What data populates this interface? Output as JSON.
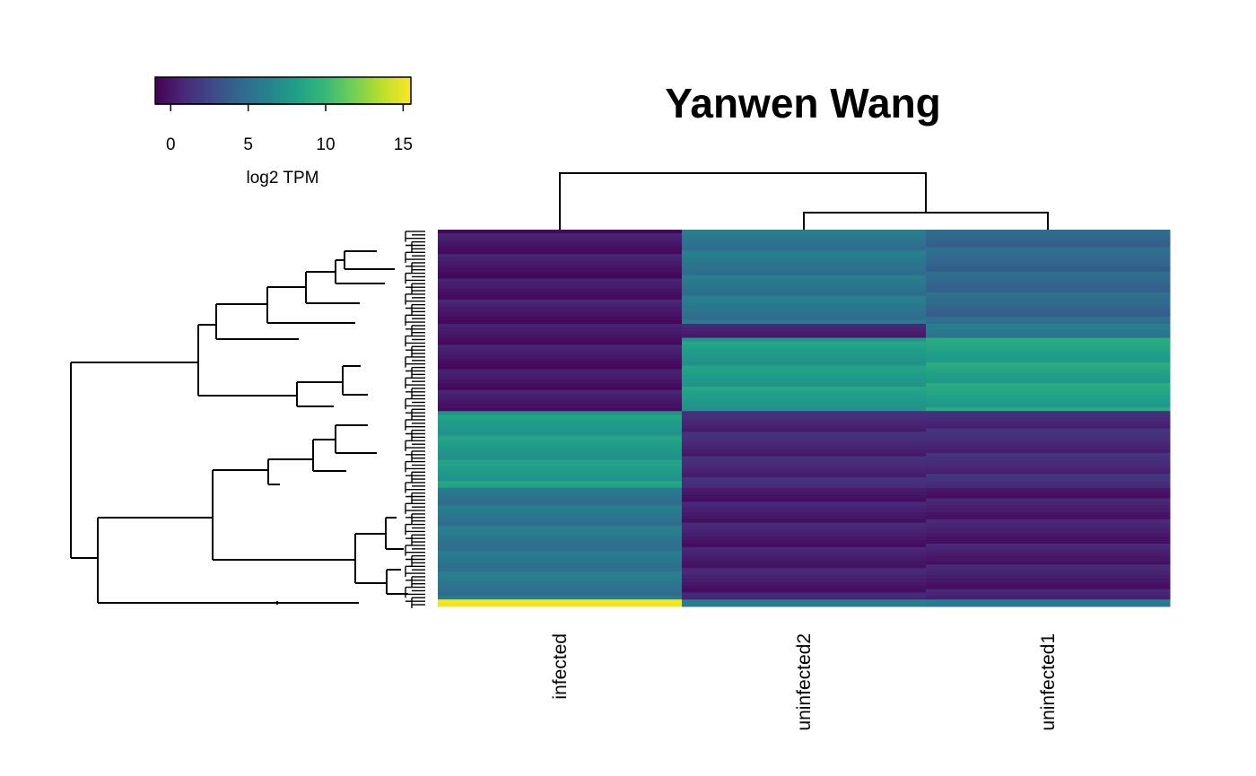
{
  "chart_data": {
    "type": "heatmap",
    "title": "Yanwen Wang",
    "columns": [
      "infected",
      "uninfected2",
      "uninfected1"
    ],
    "colorbar": {
      "label": "log2 TPM",
      "range": [
        -1,
        15.5
      ],
      "ticks": [
        0,
        5,
        10,
        15
      ],
      "tick_labels": [
        "0",
        "5",
        "10",
        "15"
      ],
      "palette": "viridis"
    },
    "row_blocks": [
      {
        "rows": 27,
        "infected": 0,
        "uninfected2": 5.5,
        "uninfected1": 4.5
      },
      {
        "rows": 4,
        "infected": 0,
        "uninfected2": 0.5,
        "uninfected1": 6.0
      },
      {
        "rows": 21,
        "infected": 0,
        "uninfected2": 8.0,
        "uninfected1": 8.5
      },
      {
        "rows": 22,
        "infected": 8.0,
        "uninfected2": 0.8,
        "uninfected1": 1.0
      },
      {
        "rows": 32,
        "infected": 5.5,
        "uninfected2": 0.3,
        "uninfected1": 0.3
      },
      {
        "rows": 2,
        "infected": 15.0,
        "uninfected2": 6.0,
        "uninfected1": 6.0
      }
    ],
    "column_dendrogram": {
      "merges": [
        {
          "left": "uninfected2",
          "right": "uninfected1",
          "height": 0.4
        },
        {
          "left": "infected",
          "right": "uninfected2+uninfected1",
          "height": 1.0
        }
      ]
    },
    "row_dendrogram": "hierarchical clustering of genes (rows)"
  }
}
